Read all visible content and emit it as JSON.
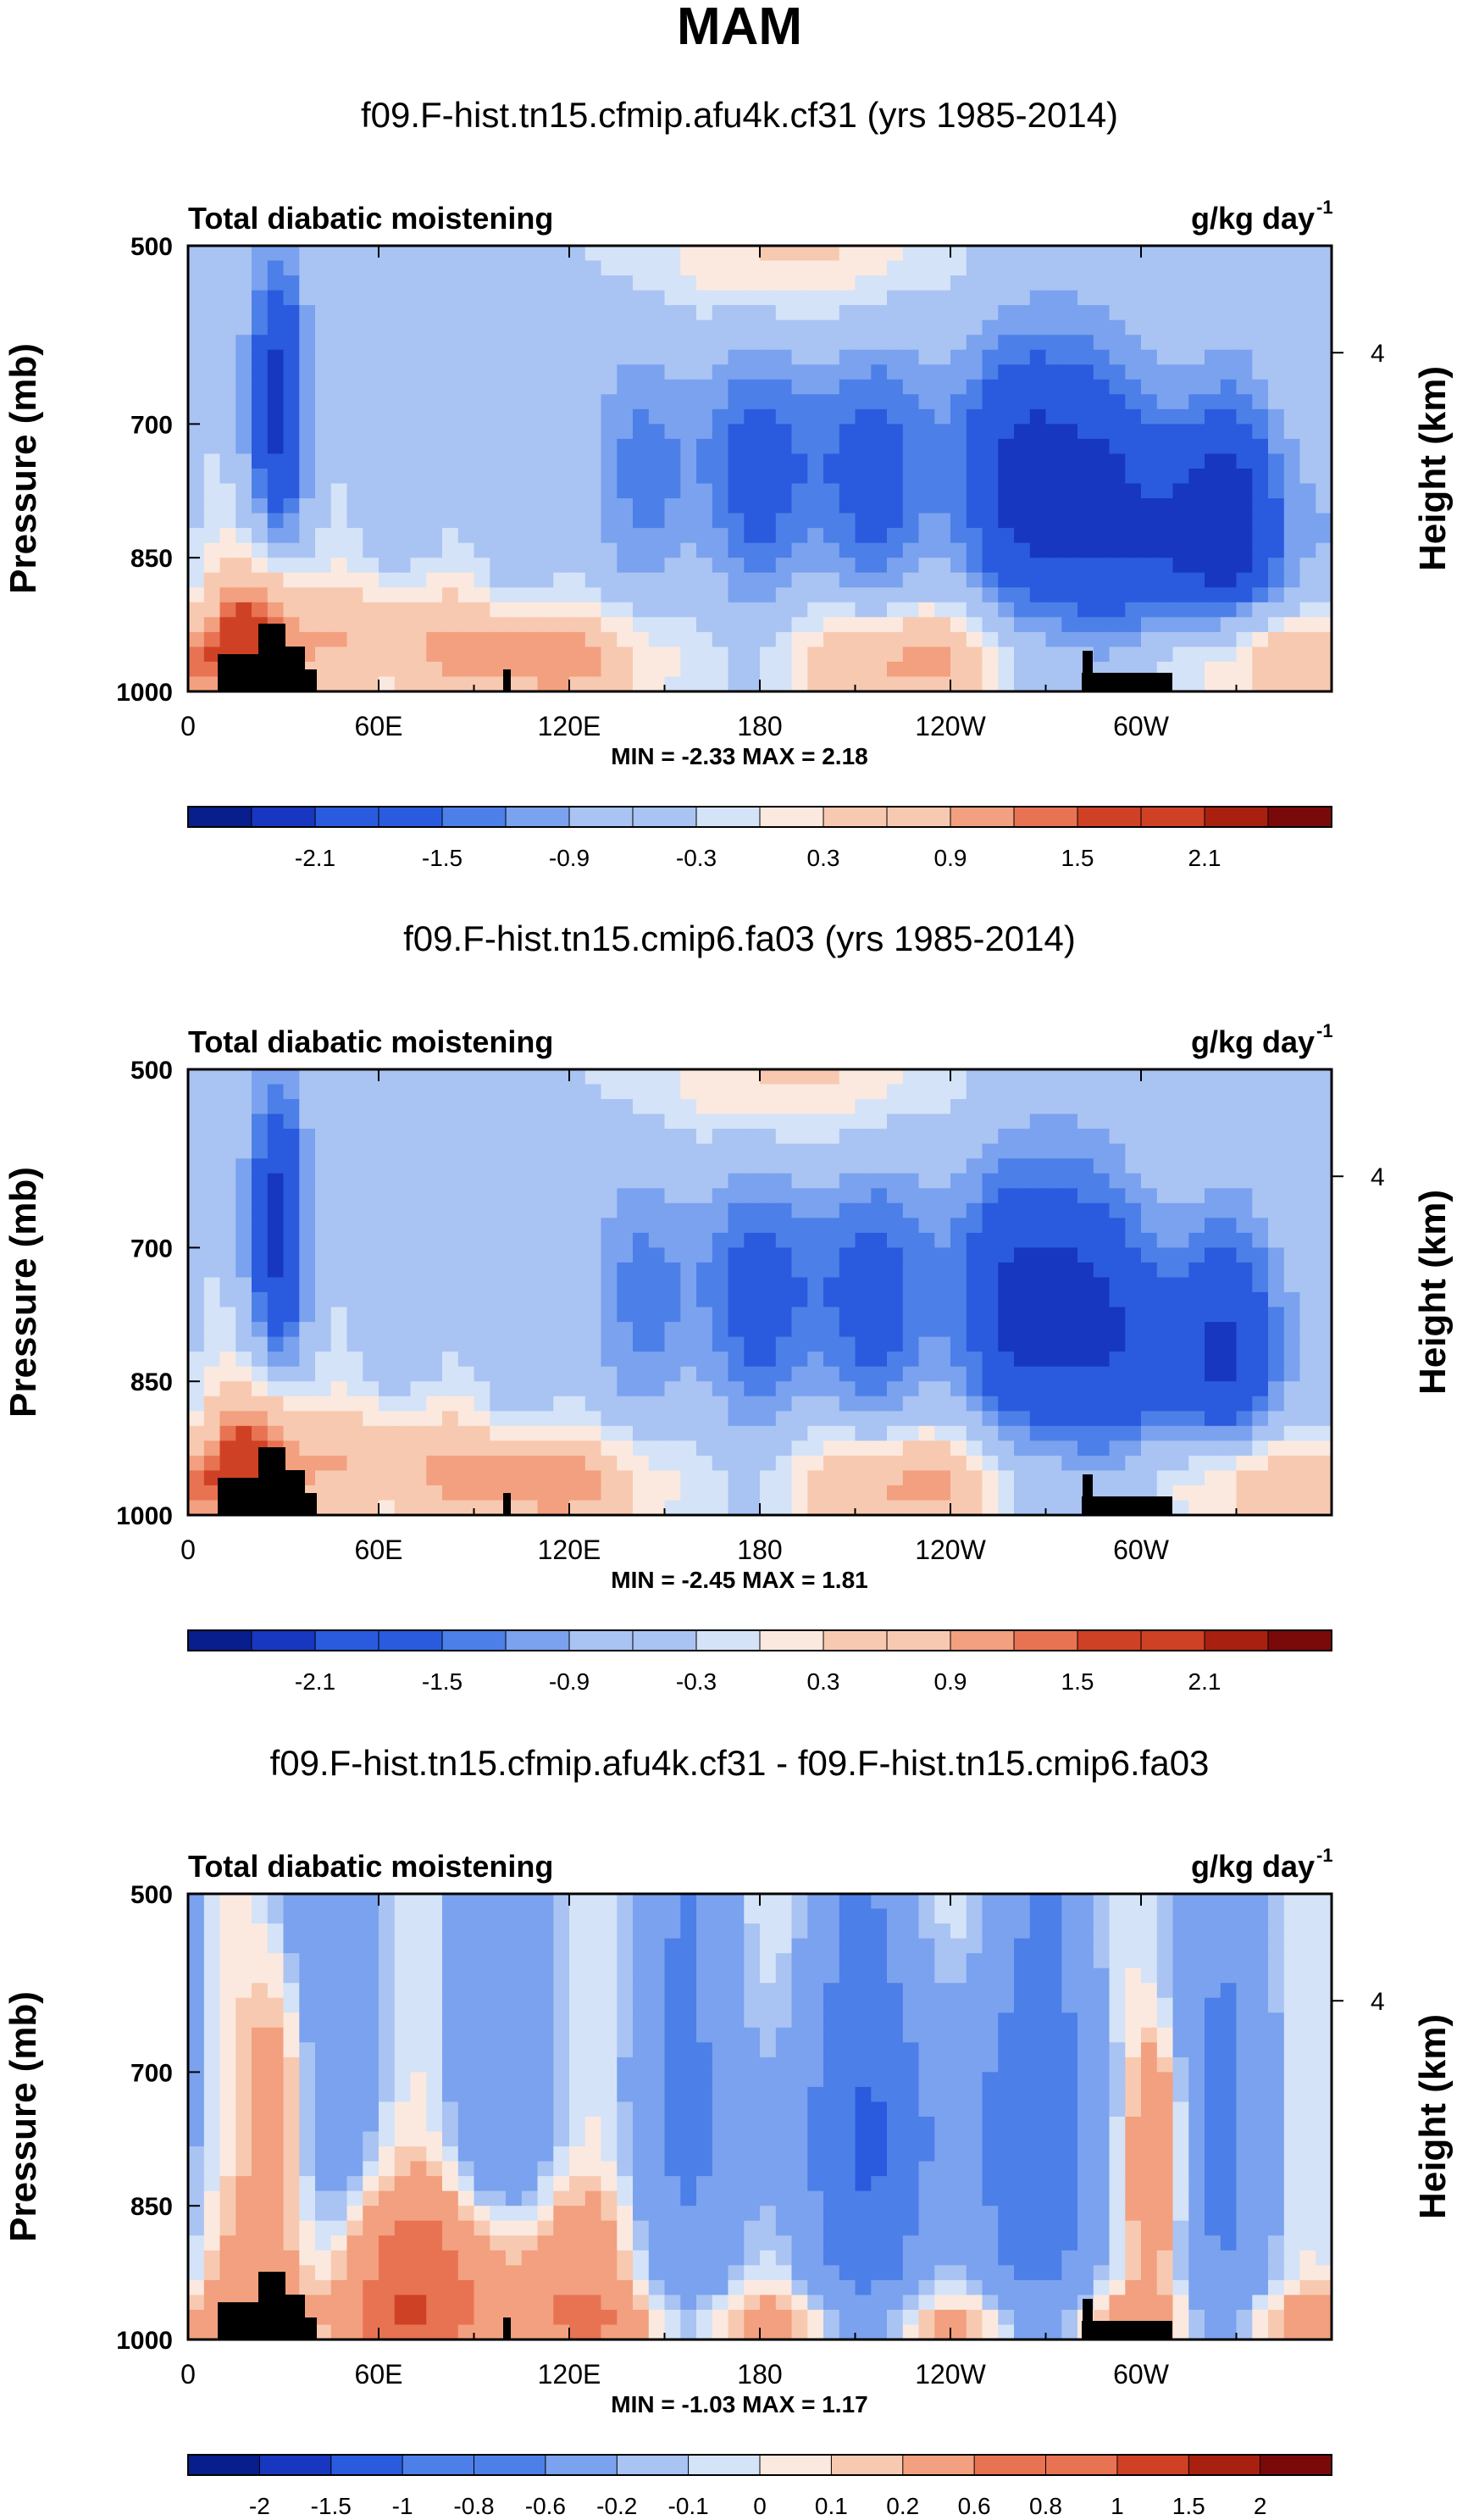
{
  "figure": {
    "title": "MAM"
  },
  "colors": {
    "scale12": [
      "#081e8c",
      "#1737c0",
      "#2a5bde",
      "#4d7fe8",
      "#7aa2ee",
      "#a9c3f3",
      "#d4e3f7",
      "#fbe9df",
      "#f8c9b1",
      "#f2a07f",
      "#e87353",
      "#cf4125",
      "#a8200f",
      "#7a0a0a"
    ],
    "terrain": "#000000"
  },
  "chart_data": [
    {
      "type": "heatmap",
      "title": "f09.F-hist.tn15.cfmip.afu4k.cf31 (yrs 1985-2014)",
      "left_label": "Total diabatic moistening",
      "units_label": "g/kg day",
      "units_exp": "-1",
      "ylabel": "Pressure (mb)",
      "ylabel_right": "Height (km)",
      "y_ticks": [
        "500",
        "700",
        "850",
        "1000"
      ],
      "y_right_ticks": [
        "4"
      ],
      "x_ticks": [
        "0",
        "60E",
        "120E",
        "180",
        "120W",
        "60W"
      ],
      "stats": "MIN = -2.33  MAX =  2.18",
      "min": -2.33,
      "max": 2.18,
      "colorbar_labels": [
        "-2.1",
        "-1.5",
        "-0.9",
        "-0.3",
        "0.3",
        "0.9",
        "1.5",
        "2.1"
      ],
      "colorbar_levels": [
        -2.4,
        -2.1,
        -1.8,
        -1.5,
        -1.2,
        -0.9,
        -0.6,
        -0.3,
        0,
        0.3,
        0.6,
        0.9,
        1.2,
        1.5,
        1.8,
        2.1,
        2.4
      ]
    },
    {
      "type": "heatmap",
      "title": "f09.F-hist.tn15.cmip6.fa03 (yrs 1985-2014)",
      "left_label": "Total diabatic moistening",
      "units_label": "g/kg day",
      "units_exp": "-1",
      "ylabel": "Pressure (mb)",
      "ylabel_right": "Height (km)",
      "y_ticks": [
        "500",
        "700",
        "850",
        "1000"
      ],
      "y_right_ticks": [
        "4"
      ],
      "x_ticks": [
        "0",
        "60E",
        "120E",
        "180",
        "120W",
        "60W"
      ],
      "stats": "MIN = -2.45  MAX =  1.81",
      "min": -2.45,
      "max": 1.81,
      "colorbar_labels": [
        "-2.1",
        "-1.5",
        "-0.9",
        "-0.3",
        "0.3",
        "0.9",
        "1.5",
        "2.1"
      ],
      "colorbar_levels": [
        -2.4,
        -2.1,
        -1.8,
        -1.5,
        -1.2,
        -0.9,
        -0.6,
        -0.3,
        0,
        0.3,
        0.6,
        0.9,
        1.2,
        1.5,
        1.8,
        2.1,
        2.4
      ]
    },
    {
      "type": "heatmap",
      "title": "f09.F-hist.tn15.cfmip.afu4k.cf31 - f09.F-hist.tn15.cmip6.fa03",
      "left_label": "Total diabatic moistening",
      "units_label": "g/kg day",
      "units_exp": "-1",
      "ylabel": "Pressure (mb)",
      "ylabel_right": "Height (km)",
      "y_ticks": [
        "500",
        "700",
        "850",
        "1000"
      ],
      "y_right_ticks": [
        "4"
      ],
      "x_ticks": [
        "0",
        "60E",
        "120E",
        "180",
        "120W",
        "60W"
      ],
      "stats": "MIN = -1.03  MAX =  1.17",
      "min": -1.03,
      "max": 1.17,
      "colorbar_labels": [
        "-2",
        "-1.5",
        "-1",
        "-0.8",
        "-0.6",
        "-0.2",
        "-0.1",
        "0",
        "0.1",
        "0.2",
        "0.6",
        "0.8",
        "1",
        "1.5",
        "2"
      ],
      "colorbar_levels": [
        -2,
        -1.5,
        -1,
        -0.8,
        -0.6,
        -0.2,
        -0.1,
        0,
        0.1,
        0.2,
        0.6,
        0.8,
        1,
        1.5,
        2
      ]
    }
  ]
}
